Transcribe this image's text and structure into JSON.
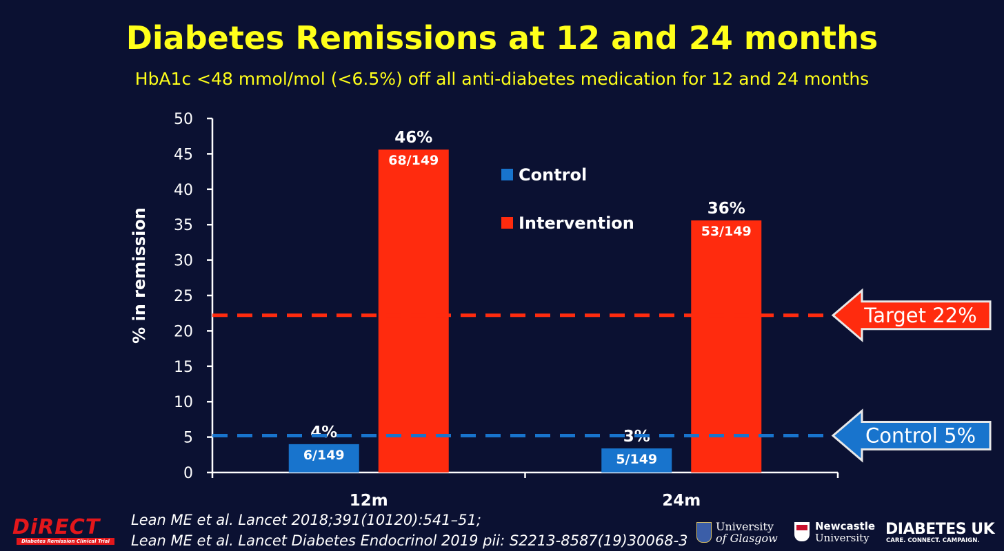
{
  "slide": {
    "title": "Diabetes Remissions at 12 and 24 months",
    "subtitle": "HbA1c <48 mmol/mol  (<6.5%)  off all anti-diabetes medication for 12 and 24 months"
  },
  "chart_data": {
    "type": "bar",
    "categories": [
      "12m",
      "24m"
    ],
    "ylabel": "% in remission",
    "ylim": [
      0,
      50
    ],
    "yticks": [
      0,
      5,
      10,
      15,
      20,
      25,
      30,
      35,
      40,
      45,
      50
    ],
    "series": [
      {
        "name": "Control",
        "color": "#1874cd",
        "values": [
          4,
          3.4
        ],
        "percent_labels": [
          "4%",
          "3%"
        ],
        "fraction_labels": [
          "6/149",
          "5/149"
        ]
      },
      {
        "name": "Intervention",
        "color": "#ff2b0e",
        "values": [
          45.6,
          35.6
        ],
        "percent_labels": [
          "46%",
          "36%"
        ],
        "fraction_labels": [
          "68/149",
          "53/149"
        ]
      }
    ],
    "legend_position": "top-center",
    "reference_lines": [
      {
        "label": "Target 22%",
        "value": 22.2,
        "color": "#ff2b0e"
      },
      {
        "label": "Control 5%",
        "value": 5.2,
        "color": "#1874cd"
      }
    ]
  },
  "footer": {
    "references": [
      "Lean ME et al. Lancet 2018;391(10120):541–51;",
      "Lean ME et al. Lancet Diabetes Endocrinol 2019 pii: S2213-8587(19)30068-3"
    ],
    "logos": {
      "direct": {
        "name": "DiRECT",
        "tagline": "Diabetes Remission Clinical Trial"
      },
      "glasgow": {
        "line1": "University",
        "line2": "of Glasgow"
      },
      "newcastle": {
        "line1": "Newcastle",
        "line2": "University"
      },
      "diabetes_uk": {
        "name": "DIABETES UK",
        "tagline": "CARE. CONNECT. CAMPAIGN."
      }
    }
  }
}
